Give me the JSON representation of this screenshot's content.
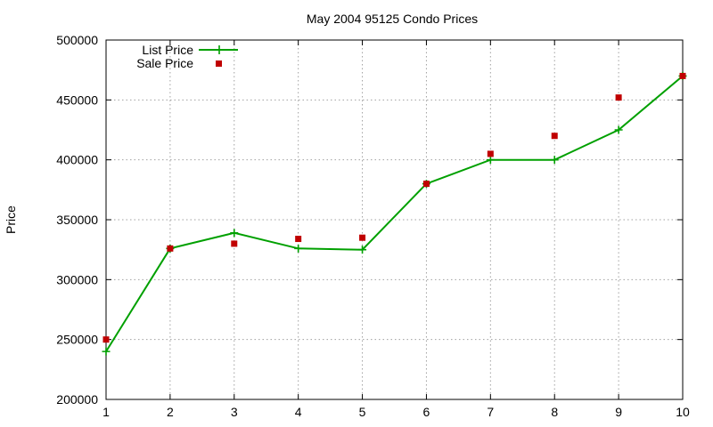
{
  "chart_data": {
    "type": "line",
    "title": "May 2004 95125 Condo Prices",
    "xlabel": "",
    "ylabel": "Price",
    "xlim": [
      1,
      10
    ],
    "ylim": [
      200000,
      500000
    ],
    "x_ticks": [
      1,
      2,
      3,
      4,
      5,
      6,
      7,
      8,
      9,
      10
    ],
    "y_ticks": [
      200000,
      250000,
      300000,
      350000,
      400000,
      450000,
      500000
    ],
    "grid": true,
    "legend_position": "top-left",
    "series": [
      {
        "name": "List Price",
        "style": "line-with-plus-markers",
        "color": "#00a000",
        "x": [
          1,
          2,
          3,
          4,
          5,
          6,
          7,
          8,
          9,
          10
        ],
        "values": [
          240000,
          326000,
          339000,
          326000,
          325000,
          380000,
          400000,
          400000,
          425000,
          470000
        ]
      },
      {
        "name": "Sale Price",
        "style": "square-markers",
        "color": "#c00000",
        "x": [
          1,
          2,
          3,
          4,
          5,
          6,
          7,
          8,
          9,
          10
        ],
        "values": [
          250000,
          326000,
          330000,
          334000,
          335000,
          380000,
          405000,
          420000,
          452000,
          470000
        ]
      }
    ]
  }
}
